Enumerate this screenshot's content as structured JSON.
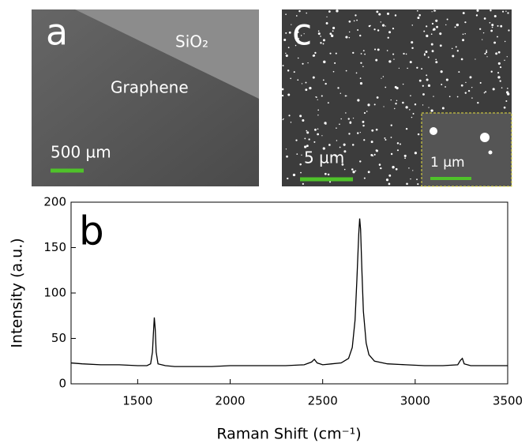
{
  "panels": [
    {
      "label": "a",
      "texts": [
        "SiO₂",
        "Graphene"
      ],
      "scale_bar": "500 µm"
    },
    {
      "label": "c",
      "scale_bar": "5 µm",
      "inset_scale_bar": "1 µm"
    }
  ],
  "chart_data": {
    "type": "line",
    "panel_label": "b",
    "x_label": "Raman Shift (cm⁻¹)",
    "y_label": "Intensity (a.u.)",
    "xlim": [
      1140,
      3500
    ],
    "ylim": [
      0,
      200
    ],
    "xticks": [
      1500,
      2000,
      2500,
      3000,
      3500
    ],
    "yticks": [
      0,
      50,
      100,
      150,
      200
    ],
    "x": [
      1140,
      1200,
      1300,
      1400,
      1500,
      1550,
      1570,
      1580,
      1585,
      1590,
      1595,
      1600,
      1610,
      1650,
      1700,
      1800,
      1900,
      2000,
      2100,
      2200,
      2300,
      2400,
      2440,
      2455,
      2470,
      2500,
      2550,
      2600,
      2640,
      2660,
      2675,
      2685,
      2695,
      2700,
      2705,
      2712,
      2720,
      2735,
      2750,
      2780,
      2850,
      2950,
      3050,
      3150,
      3230,
      3245,
      3255,
      3265,
      3300,
      3400,
      3500
    ],
    "series": [
      {
        "color": "#000000",
        "values": [
          23,
          22,
          21,
          21,
          20,
          20,
          22,
          35,
          55,
          73,
          60,
          35,
          22,
          20,
          19,
          19,
          19,
          20,
          20,
          20,
          20,
          21,
          24,
          27,
          23,
          21,
          22,
          23,
          28,
          40,
          70,
          115,
          165,
          182,
          170,
          125,
          80,
          45,
          32,
          25,
          22,
          21,
          20,
          20,
          21,
          26,
          28,
          22,
          20,
          20,
          20
        ]
      }
    ]
  }
}
